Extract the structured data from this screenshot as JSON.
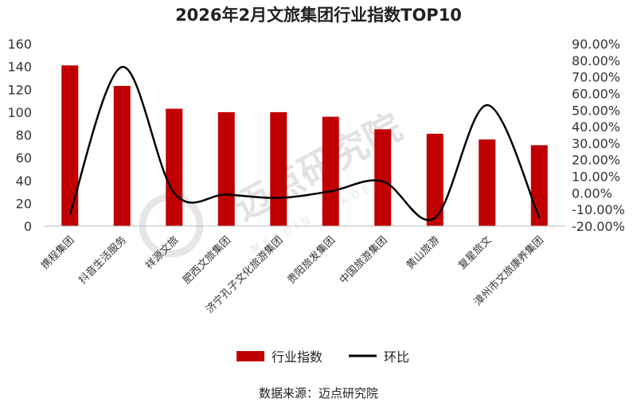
{
  "chart_data": {
    "type": "bar+line",
    "title": "2026年2月文旅集团行业指数TOP10",
    "categories": [
      "携程集团",
      "抖音生活服务",
      "祥源文旅",
      "肥西文旅集团",
      "济宁孔子文化旅游集团",
      "贵阳旅发集团",
      "中国旅游集团",
      "黄山旅游",
      "复星旅文",
      "漳州市文旅康养集团"
    ],
    "series": [
      {
        "name": "行业指数",
        "kind": "bar",
        "axis": "left",
        "color": "#c00000",
        "values": [
          141,
          123,
          103,
          100,
          100,
          96,
          85,
          81,
          76,
          71
        ]
      },
      {
        "name": "环比",
        "kind": "line",
        "axis": "right",
        "color": "#000000",
        "values": [
          -13,
          76,
          0,
          -1,
          -3,
          1,
          7,
          -15,
          53,
          -15
        ]
      }
    ],
    "left_axis": {
      "min": 0,
      "max": 160,
      "step": 20,
      "tick_labels": [
        "0",
        "20",
        "40",
        "60",
        "80",
        "100",
        "120",
        "140",
        "160"
      ]
    },
    "right_axis": {
      "min": -20,
      "max": 90,
      "step": 10,
      "tick_labels": [
        "-20.00%",
        "-10.00%",
        "0.00%",
        "10.00%",
        "20.00%",
        "30.00%",
        "40.00%",
        "50.00%",
        "60.00%",
        "70.00%",
        "80.00%",
        "90.00%"
      ]
    },
    "legend": {
      "position": "bottom",
      "items": [
        {
          "label": "行业指数",
          "type": "bar"
        },
        {
          "label": "环比",
          "type": "line"
        }
      ]
    },
    "grid": false
  },
  "source_note": "数据来源：迈点研究院",
  "watermark": {
    "text": "迈点研究院",
    "sub": "MEADIN ACADEMY"
  }
}
